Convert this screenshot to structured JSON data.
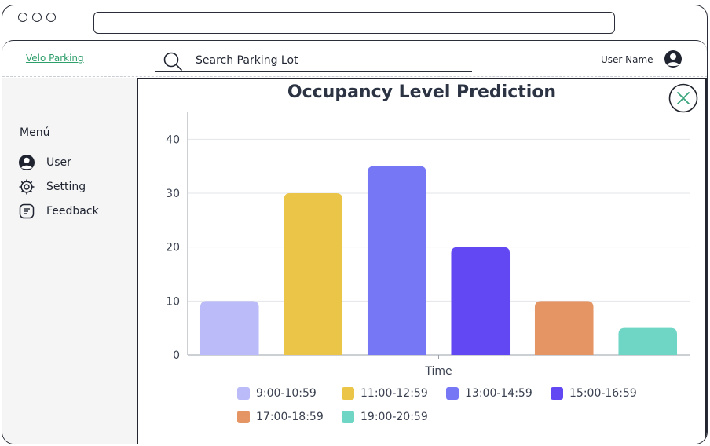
{
  "app": {
    "logo": "Velo Parking",
    "search_placeholder": "Search Parking Lot",
    "user_name": "User Name"
  },
  "sidebar": {
    "title": "Menú",
    "items": [
      {
        "label": "User",
        "icon": "user-icon"
      },
      {
        "label": "Setting",
        "icon": "gear-icon"
      },
      {
        "label": "Feedback",
        "icon": "feedback-icon"
      }
    ]
  },
  "modal": {
    "close_icon": "close-icon"
  },
  "chart_data": {
    "type": "bar",
    "title": "Occupancy Level Prediction",
    "xlabel": "Time",
    "ylabel": "",
    "ylim": [
      0,
      45
    ],
    "yticks": [
      0,
      10,
      20,
      30,
      40
    ],
    "grid": true,
    "legend_position": "bottom",
    "categories": [
      "9:00-10:59",
      "11:00-12:59",
      "13:00-14:59",
      "15:00-16:59",
      "17:00-18:59",
      "19:00-20:59"
    ],
    "values": [
      10,
      30,
      35,
      20,
      10,
      5
    ],
    "colors": [
      "#babbf8",
      "#eac548",
      "#7677f5",
      "#6248f2",
      "#e59464",
      "#6fd6c6"
    ]
  }
}
